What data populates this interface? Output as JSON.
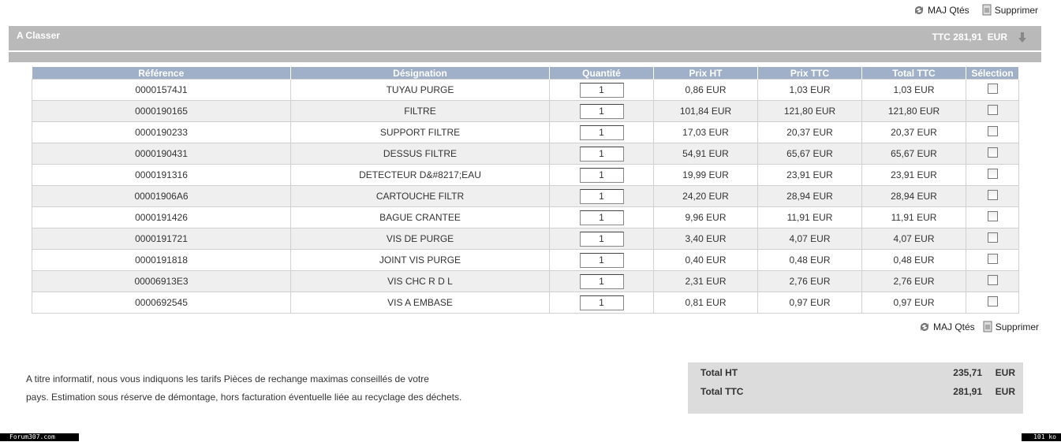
{
  "toolbar_top": {
    "update": "MAJ Qtés",
    "delete": "Supprimer"
  },
  "section": {
    "title": "A Classer",
    "total_label": "TTC 281,91",
    "total_currency": "EUR"
  },
  "table": {
    "headers": [
      "Référence",
      "Désignation",
      "Quantité",
      "Prix HT",
      "Prix TTC",
      "Total TTC",
      "Sélection"
    ],
    "rows": [
      [
        "00001574J1",
        "TUYAU PURGE",
        "1",
        "0,86 EUR",
        "1,03 EUR",
        "1,03 EUR"
      ],
      [
        "0000190165",
        "FILTRE",
        "1",
        "101,84 EUR",
        "121,80 EUR",
        "121,80 EUR"
      ],
      [
        "0000190233",
        "SUPPORT FILTRE",
        "1",
        "17,03 EUR",
        "20,37 EUR",
        "20,37 EUR"
      ],
      [
        "0000190431",
        "DESSUS FILTRE",
        "1",
        "54,91 EUR",
        "65,67 EUR",
        "65,67 EUR"
      ],
      [
        "0000191316",
        "DETECTEUR D&#8217;EAU",
        "1",
        "19,99 EUR",
        "23,91 EUR",
        "23,91 EUR"
      ],
      [
        "00001906A6",
        "CARTOUCHE FILTR",
        "1",
        "24,20 EUR",
        "28,94 EUR",
        "28,94 EUR"
      ],
      [
        "0000191426",
        "BAGUE CRANTEE",
        "1",
        "9,96 EUR",
        "11,91 EUR",
        "11,91 EUR"
      ],
      [
        "0000191721",
        "VIS DE PURGE",
        "1",
        "3,40 EUR",
        "4,07 EUR",
        "4,07 EUR"
      ],
      [
        "0000191818",
        "JOINT VIS PURGE",
        "1",
        "0,40 EUR",
        "0,48 EUR",
        "0,48 EUR"
      ],
      [
        "00006913E3",
        "VIS CHC R D L",
        "1",
        "2,31 EUR",
        "2,76 EUR",
        "2,76 EUR"
      ],
      [
        "0000692545",
        "VIS A EMBASE",
        "1",
        "0,81 EUR",
        "0,97 EUR",
        "0,97 EUR"
      ]
    ]
  },
  "toolbar_bottom": {
    "update": "MAJ Qtés",
    "delete": "Supprimer"
  },
  "notice": {
    "line1": "A titre informatif, nous vous indiquons les tarifs Pièces de rechange maximas conseillés de votre",
    "line2": "pays. Estimation sous réserve de démontage, hors facturation éventuelle liée au recyclage des déchets."
  },
  "totals": [
    {
      "label": "Total HT",
      "value": "235,71",
      "currency": "EUR"
    },
    {
      "label": "Total TTC",
      "value": "281,91",
      "currency": "EUR"
    }
  ],
  "footer": {
    "left": "Forum307.com",
    "right": "101 ko"
  }
}
